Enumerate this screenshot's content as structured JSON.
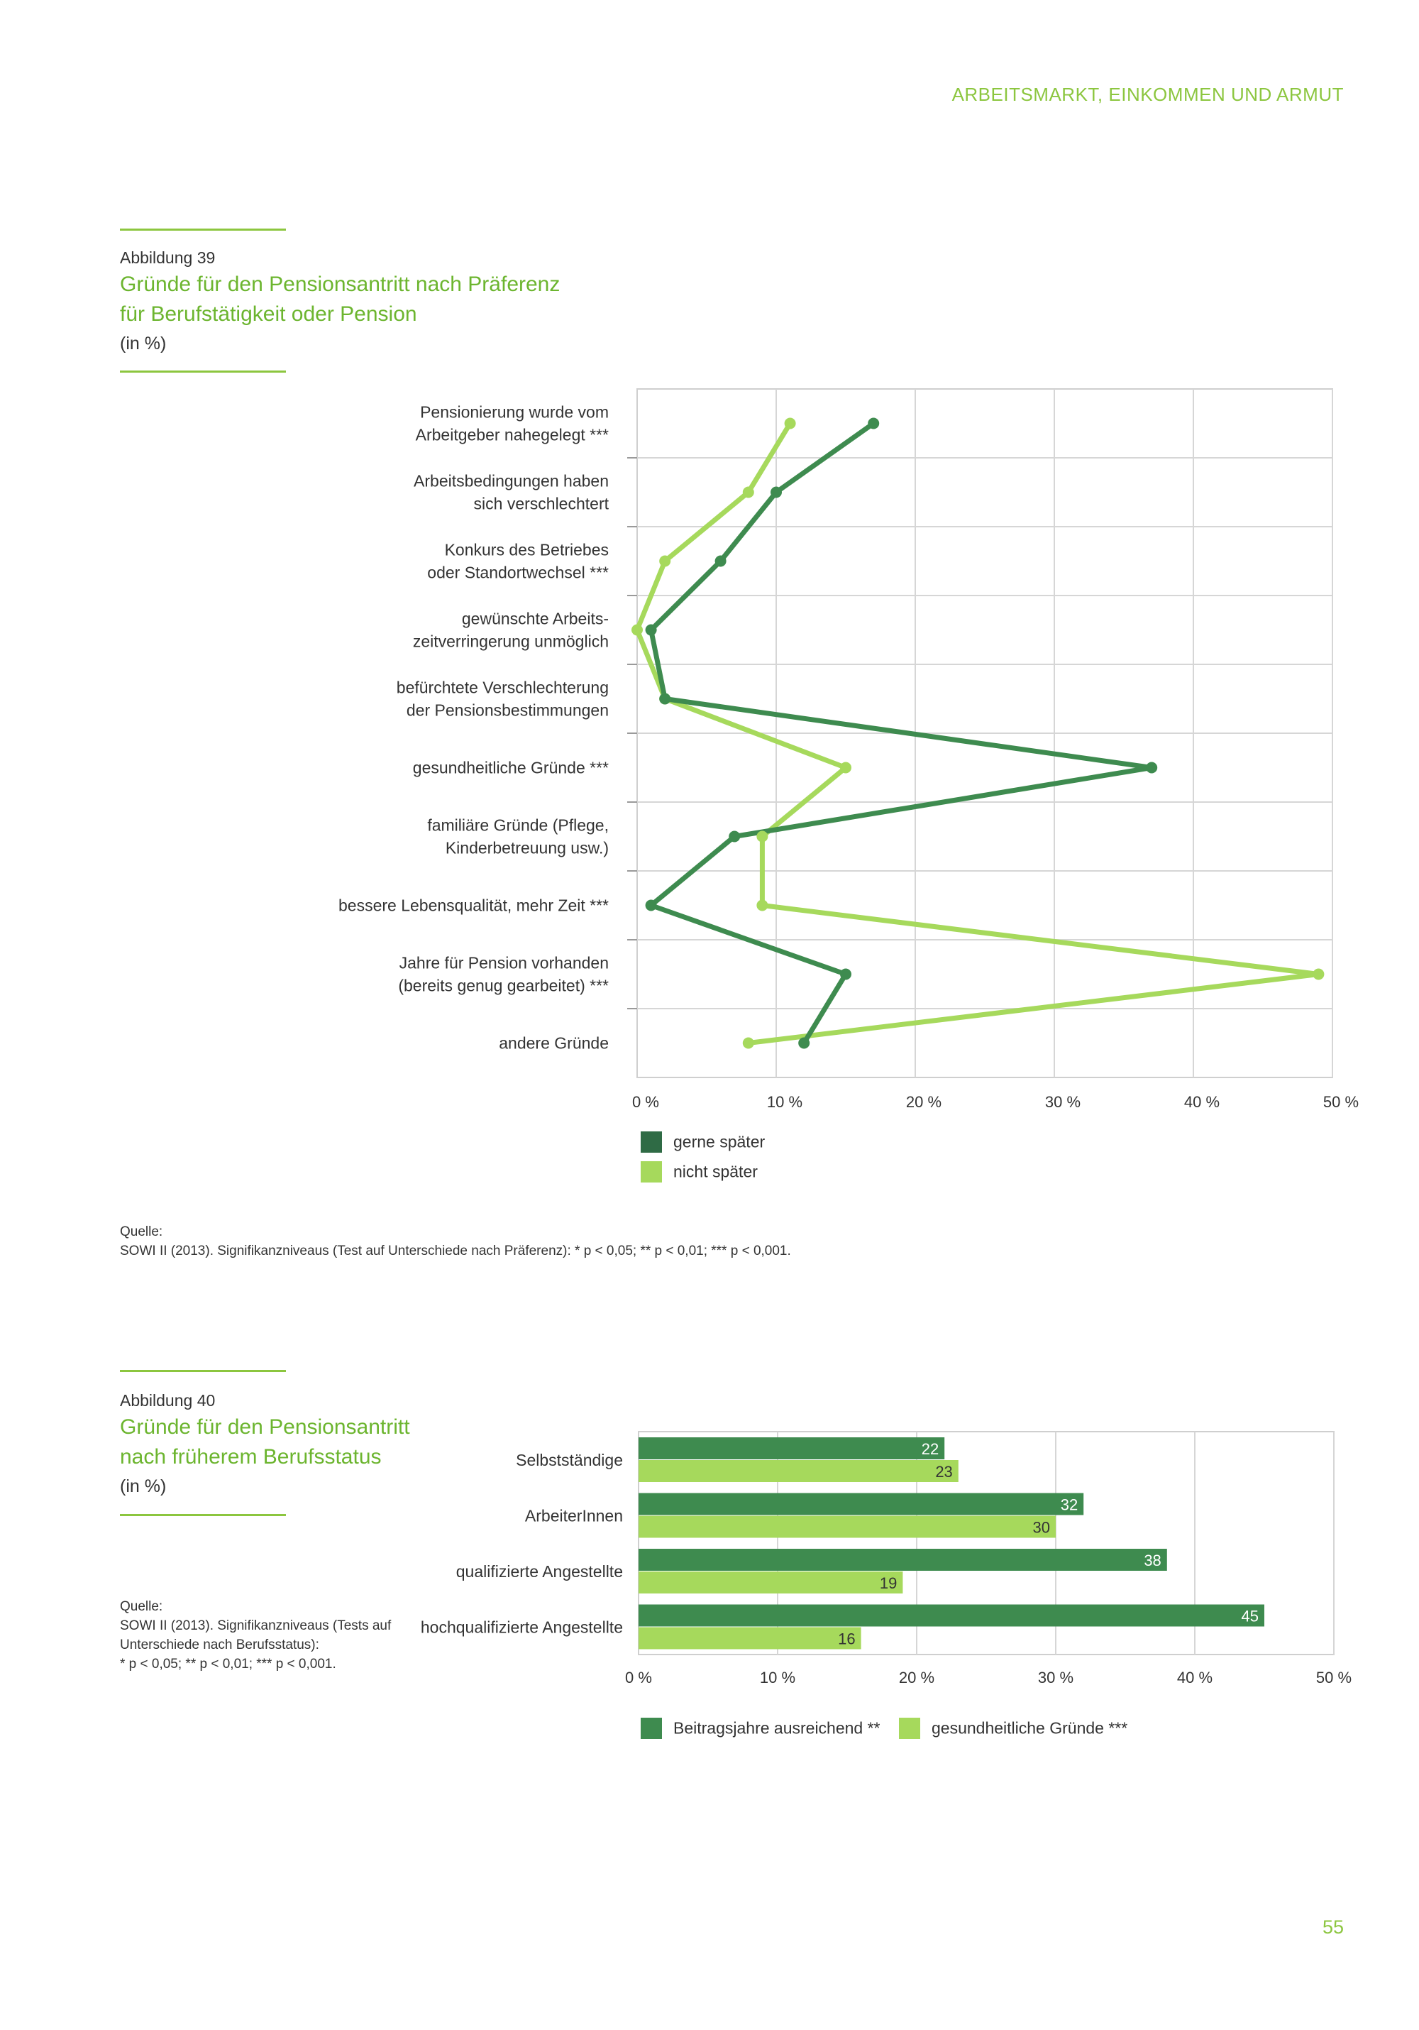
{
  "running_header": "ARBEITSMARKT, EINKOMMEN UND ARMUT",
  "page_number": "55",
  "colors": {
    "accent": "#8cc63f",
    "dark_green": "#3e8b4f",
    "light_green": "#a6d95c",
    "grid": "#d0d0d0"
  },
  "figure39": {
    "label": "Abbildung 39",
    "title_line1": "Gründe für den Pensionsantritt nach Präferenz",
    "title_line2": "für Berufstätigkeit oder Pension",
    "unit": "(in %)",
    "source_heading": "Quelle:",
    "source_text": "SOWI II (2013). Signifikanzniveaus (Test auf Unterschiede nach Präferenz): * p < 0,05; ** p < 0,01; *** p < 0,001."
  },
  "figure40": {
    "label": "Abbildung 40",
    "title_line1": "Gründe für den Pensionsantritt",
    "title_line2": "nach früherem Berufsstatus",
    "unit": "(in %)",
    "source_heading": "Quelle:",
    "source_line1": "SOWI II (2013). Signifikanzniveaus (Tests auf",
    "source_line2": "Unterschiede nach Berufsstatus):",
    "source_line3": "* p < 0,05; ** p < 0,01; *** p < 0,001."
  },
  "chart_data": [
    {
      "type": "line",
      "orientation": "horizontal-values",
      "categories": [
        [
          "Pensionierung wurde vom",
          "Arbeitgeber nahegelegt ***"
        ],
        [
          "Arbeitsbedingungen haben",
          "sich verschlechtert"
        ],
        [
          "Konkurs des Betriebes",
          "oder Standortwechsel ***"
        ],
        [
          "gewünschte Arbeits-",
          "zeitverringerung unmöglich"
        ],
        [
          "befürchtete Verschlechterung",
          "der Pensionsbestimmungen"
        ],
        [
          "gesundheitliche Gründe ***"
        ],
        [
          "familiäre Gründe (Pflege,",
          "Kinderbetreuung usw.)"
        ],
        [
          "bessere Lebensqualität, mehr Zeit ***"
        ],
        [
          "Jahre für Pension vorhanden",
          "(bereits genug gearbeitet) ***"
        ],
        [
          "andere Gründe"
        ]
      ],
      "series": [
        {
          "name": "gerne später",
          "color": "#3e8b4f",
          "values": [
            17,
            10,
            6,
            1,
            2,
            37,
            7,
            1,
            15,
            12
          ]
        },
        {
          "name": "nicht später",
          "color": "#a6d95c",
          "values": [
            11,
            8,
            2,
            0,
            2,
            15,
            9,
            9,
            49,
            8
          ]
        }
      ],
      "xlim": [
        0,
        50
      ],
      "xticks": [
        "0 %",
        "10 %",
        "20 %",
        "30 %",
        "40 %",
        "50 %"
      ],
      "grid": true,
      "legend_position": "bottom-left"
    },
    {
      "type": "bar",
      "orientation": "horizontal",
      "categories": [
        "Selbstständige",
        "ArbeiterInnen",
        "qualifizierte Angestellte",
        "hochqualifizierte Angestellte"
      ],
      "series": [
        {
          "name": "Beitragsjahre ausreichend **",
          "color": "#3e8b4f",
          "values": [
            22,
            32,
            38,
            45
          ]
        },
        {
          "name": "gesundheitliche Gründe ***",
          "color": "#a6d95c",
          "values": [
            23,
            30,
            19,
            16
          ]
        }
      ],
      "xlim": [
        0,
        50
      ],
      "xticks": [
        "0 %",
        "10 %",
        "20 %",
        "30 %",
        "40 %",
        "50 %"
      ],
      "grid": true,
      "legend_position": "bottom"
    }
  ]
}
